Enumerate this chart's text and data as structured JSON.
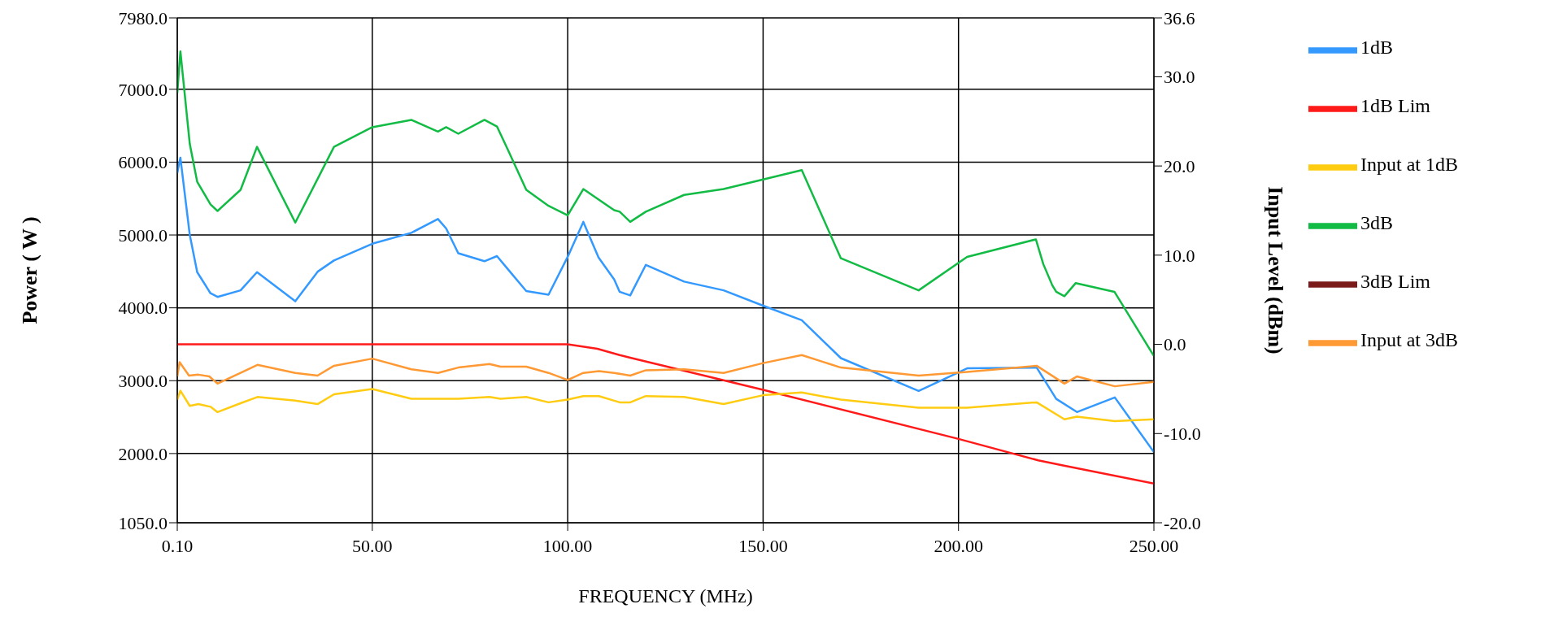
{
  "chart_data": {
    "type": "line",
    "xlabel": "FREQUENCY (MHz)",
    "ylabel": "Power ( W )",
    "y2label": "Input Level (dBm)",
    "xlim": [
      0.1,
      250
    ],
    "xticks": [
      {
        "value": 0.1,
        "label": "0.10"
      },
      {
        "value": 50,
        "label": "50.00"
      },
      {
        "value": 100,
        "label": "100.00"
      },
      {
        "value": 150,
        "label": "150.00"
      },
      {
        "value": 200,
        "label": "200.00"
      },
      {
        "value": 250,
        "label": "250.00"
      }
    ],
    "ylim": [
      1050,
      7980
    ],
    "yticks": [
      {
        "value": 1050,
        "label": "1050.0"
      },
      {
        "value": 2000,
        "label": "2000.0"
      },
      {
        "value": 3000,
        "label": "3000.0"
      },
      {
        "value": 4000,
        "label": "4000.0"
      },
      {
        "value": 5000,
        "label": "5000.0"
      },
      {
        "value": 6000,
        "label": "6000.0"
      },
      {
        "value": 7000,
        "label": "7000.0"
      },
      {
        "value": 7980,
        "label": "7980.0"
      }
    ],
    "y2lim": [
      -20,
      36.6
    ],
    "y2ticks": [
      {
        "value": -20,
        "label": "-20.0"
      },
      {
        "value": -10,
        "label": "-10.0"
      },
      {
        "value": 0,
        "label": "0.0"
      },
      {
        "value": 10,
        "label": "10.0"
      },
      {
        "value": 20,
        "label": "20.0"
      },
      {
        "value": 30,
        "label": "30.0"
      },
      36.6
    ],
    "grid": true,
    "legend": "right",
    "series": [
      {
        "name": "1dB",
        "color": "#3399ff",
        "x": [
          0.1,
          0.9,
          3.3,
          5.2,
          8.6,
          10.4,
          16.3,
          20.5,
          30.3,
          36.1,
          40.2,
          50,
          60,
          66.8,
          68.9,
          72,
          78.7,
          81.9,
          84.7,
          89.4,
          95.1,
          100,
          104,
          107.9,
          111.9,
          113.3,
          116,
          120,
          129.8,
          139.9,
          150,
          159.9,
          169.9,
          189.8,
          202.2,
          220,
          225,
          230.3,
          240,
          250
        ],
        "values": [
          5850,
          6060,
          5000,
          4490,
          4200,
          4150,
          4240,
          4490,
          4090,
          4500,
          4650,
          4880,
          5030,
          5220,
          5090,
          4750,
          4640,
          4710,
          4530,
          4230,
          4180,
          4700,
          5180,
          4690,
          4390,
          4220,
          4170,
          4590,
          4360,
          4240,
          4030,
          3830,
          3310,
          2860,
          3170,
          3180,
          2750,
          2570,
          2770,
          2020
        ]
      },
      {
        "name": "1dB Lim",
        "color": "#ff1a1a",
        "axis": "y2",
        "x": [
          0.1,
          100,
          107.6,
          113.3,
          116,
          150,
          200,
          220.4,
          227,
          250
        ],
        "values": [
          0.0,
          0.0,
          -0.5,
          -1.2,
          -1.5,
          -5.1,
          -10.6,
          -13.0,
          -13.6,
          -15.6
        ]
      },
      {
        "name": "Input at 1dB",
        "color": "#ffcc11",
        "axis": "y2",
        "x": [
          0.1,
          0.9,
          3.3,
          5.5,
          8.6,
          10.4,
          16.3,
          20.6,
          30.3,
          36,
          40.2,
          50,
          60,
          72,
          80,
          82.8,
          89.4,
          95.1,
          100,
          104,
          108,
          113.3,
          116,
          120,
          129.8,
          139.9,
          150,
          159.9,
          169.9,
          189.8,
          202.2,
          220,
          227.1,
          230.3,
          240,
          250
        ],
        "values": [
          -6.2,
          -5.2,
          -6.9,
          -6.7,
          -7.0,
          -7.6,
          -6.6,
          -5.9,
          -6.3,
          -6.7,
          -5.6,
          -5.0,
          -6.1,
          -6.1,
          -5.9,
          -6.1,
          -5.9,
          -6.5,
          -6.2,
          -5.8,
          -5.8,
          -6.5,
          -6.5,
          -5.8,
          -5.9,
          -6.7,
          -5.7,
          -5.4,
          -6.2,
          -7.1,
          -7.1,
          -6.5,
          -8.4,
          -8.1,
          -8.6,
          -8.4
        ]
      },
      {
        "name": "3dB",
        "color": "#11bb44",
        "x": [
          0.1,
          0.9,
          3.3,
          5.2,
          8.6,
          10.4,
          16.3,
          20.5,
          30.3,
          40.2,
          50,
          60,
          66.8,
          68.9,
          72,
          78.7,
          81.9,
          84.7,
          89.4,
          95.1,
          100,
          104,
          111.9,
          113.3,
          116,
          120,
          129.8,
          139.9,
          159.9,
          169.9,
          189.8,
          202.2,
          219.8,
          221.7,
          224,
          225,
          227.1,
          230,
          239.9,
          250
        ],
        "values": [
          6950,
          7520,
          6250,
          5730,
          5420,
          5330,
          5620,
          6210,
          5170,
          6210,
          6480,
          6580,
          6420,
          6480,
          6390,
          6580,
          6490,
          6170,
          5620,
          5400,
          5270,
          5630,
          5340,
          5320,
          5180,
          5320,
          5550,
          5630,
          5890,
          4680,
          4240,
          4700,
          4940,
          4600,
          4310,
          4220,
          4160,
          4340,
          4220,
          3340
        ]
      },
      {
        "name": "3dB Lim",
        "color": "#7a1a1a"
      },
      {
        "name": "Input at 3dB",
        "color": "#ff9933",
        "axis": "y2",
        "x": [
          0.1,
          0.7,
          3.1,
          5.5,
          8.3,
          10.4,
          16.3,
          20.6,
          30.3,
          36,
          40.2,
          50,
          60,
          66.8,
          72,
          80,
          82.8,
          89.4,
          95.1,
          100,
          104,
          108,
          111.9,
          116,
          120,
          129.8,
          139.9,
          150,
          159.9,
          169.9,
          189.8,
          202.2,
          220,
          227.1,
          230.3,
          240,
          250
        ],
        "values": [
          -3.6,
          -2.0,
          -3.5,
          -3.4,
          -3.6,
          -4.4,
          -3.2,
          -2.3,
          -3.2,
          -3.5,
          -2.4,
          -1.6,
          -2.8,
          -3.2,
          -2.6,
          -2.2,
          -2.5,
          -2.5,
          -3.2,
          -4.0,
          -3.2,
          -3.0,
          -3.2,
          -3.5,
          -2.9,
          -2.8,
          -3.2,
          -2.1,
          -1.2,
          -2.6,
          -3.5,
          -3.1,
          -2.4,
          -4.4,
          -3.6,
          -4.7,
          -4.2
        ]
      }
    ]
  }
}
